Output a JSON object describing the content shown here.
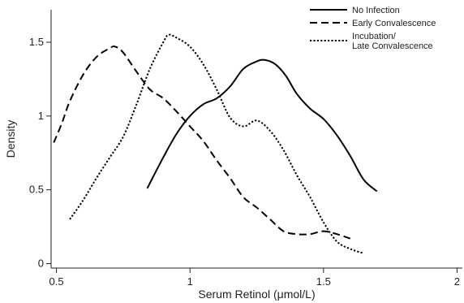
{
  "chart_data": {
    "type": "line",
    "xlabel": "Serum Retinol (μmol/L)",
    "ylabel": "Density",
    "xlim": [
      0.48,
      2.02
    ],
    "ylim": [
      -0.03,
      1.72
    ],
    "x_ticks": [
      0.5,
      1,
      1.5,
      2
    ],
    "x_tick_labels": [
      "0.5",
      "1",
      "1.5",
      "2"
    ],
    "y_ticks": [
      0,
      0.5,
      1,
      1.5
    ],
    "y_tick_labels": [
      "0",
      "0.5",
      "1",
      "1.5"
    ],
    "grid": false,
    "legend_position": "top-right",
    "series": [
      {
        "name": "No Infection",
        "dash": "solid",
        "color": "#000000",
        "x": [
          0.84,
          0.9,
          0.95,
          1.0,
          1.05,
          1.1,
          1.15,
          1.2,
          1.25,
          1.28,
          1.32,
          1.36,
          1.4,
          1.45,
          1.5,
          1.55,
          1.6,
          1.65,
          1.7
        ],
        "y": [
          0.51,
          0.72,
          0.88,
          1.0,
          1.08,
          1.12,
          1.2,
          1.32,
          1.37,
          1.38,
          1.35,
          1.27,
          1.15,
          1.05,
          0.98,
          0.87,
          0.73,
          0.57,
          0.49
        ]
      },
      {
        "name": "Early Convalescence",
        "dash": "dashed",
        "color": "#000000",
        "x": [
          0.49,
          0.52,
          0.55,
          0.6,
          0.65,
          0.7,
          0.72,
          0.75,
          0.8,
          0.85,
          0.9,
          0.95,
          1.0,
          1.05,
          1.1,
          1.15,
          1.2,
          1.25,
          1.3,
          1.35,
          1.4,
          1.45,
          1.5,
          1.55,
          1.6
        ],
        "y": [
          0.82,
          0.95,
          1.1,
          1.28,
          1.4,
          1.46,
          1.47,
          1.43,
          1.3,
          1.18,
          1.12,
          1.03,
          0.93,
          0.83,
          0.7,
          0.58,
          0.45,
          0.38,
          0.3,
          0.22,
          0.2,
          0.2,
          0.22,
          0.2,
          0.17
        ]
      },
      {
        "name": "Incubation/\nLate Convalescence",
        "dash": "dotted",
        "color": "#000000",
        "x": [
          0.55,
          0.6,
          0.65,
          0.7,
          0.75,
          0.8,
          0.85,
          0.9,
          0.92,
          0.95,
          1.0,
          1.05,
          1.1,
          1.15,
          1.2,
          1.25,
          1.3,
          1.35,
          1.4,
          1.45,
          1.5,
          1.55,
          1.6,
          1.65
        ],
        "y": [
          0.3,
          0.43,
          0.58,
          0.72,
          0.86,
          1.08,
          1.32,
          1.5,
          1.55,
          1.53,
          1.47,
          1.35,
          1.18,
          0.99,
          0.93,
          0.97,
          0.9,
          0.77,
          0.6,
          0.45,
          0.28,
          0.15,
          0.1,
          0.07
        ]
      }
    ]
  }
}
